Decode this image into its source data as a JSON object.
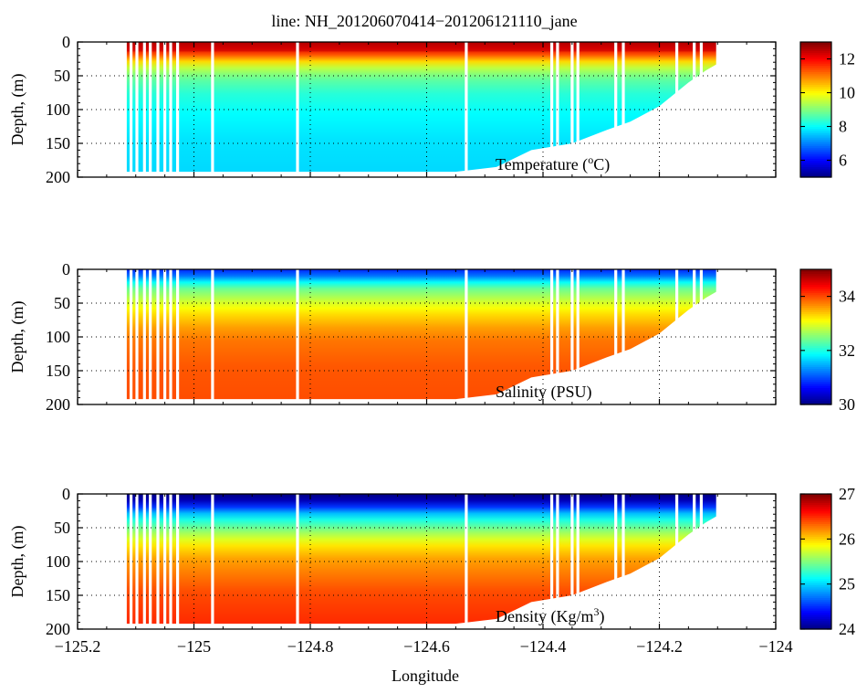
{
  "chart_data": {
    "type": "heatmap",
    "title": "line: NH_201206070414−201206121110_jane",
    "xlabel": "Longitude",
    "xlim": [
      -125.2,
      -124.0
    ],
    "xticks": [
      -125.2,
      -125.0,
      -124.8,
      -124.6,
      -124.4,
      -124.2,
      -124.0
    ],
    "xtick_labels": [
      "−125.2",
      "−125",
      "−124.8",
      "−124.6",
      "−124.4",
      "−124.2",
      "−124"
    ],
    "grid": true,
    "panels": [
      {
        "id": "temperature",
        "label_prefix": "Temperature (",
        "label_super": "o",
        "label_suffix": "C)",
        "ylabel": "Depth, (m)",
        "ylim": [
          0,
          200
        ],
        "yticks": [
          0,
          50,
          100,
          150,
          200
        ],
        "ytick_labels": [
          "0",
          "50",
          "100",
          "150",
          "200"
        ],
        "colorbar": {
          "range": [
            5,
            13
          ],
          "ticks": [
            6,
            8,
            10,
            12
          ],
          "tick_labels": [
            "6",
            "8",
            "10",
            "12"
          ]
        },
        "profile": [
          [
            0,
            12.8
          ],
          [
            10,
            12.2
          ],
          [
            18,
            11.5
          ],
          [
            25,
            10.8
          ],
          [
            35,
            9.8
          ],
          [
            45,
            9.2
          ],
          [
            60,
            8.7
          ],
          [
            80,
            8.3
          ],
          [
            110,
            8.0
          ],
          [
            150,
            7.8
          ],
          [
            200,
            7.7
          ]
        ]
      },
      {
        "id": "salinity",
        "label_prefix": "Salinity (PSU)",
        "label_super": "",
        "label_suffix": "",
        "ylabel": "Depth, (m)",
        "ylim": [
          0,
          200
        ],
        "yticks": [
          0,
          50,
          100,
          150,
          200
        ],
        "ytick_labels": [
          "0",
          "50",
          "100",
          "150",
          "200"
        ],
        "colorbar": {
          "range": [
            30,
            35
          ],
          "ticks": [
            30,
            32,
            34
          ],
          "tick_labels": [
            "30",
            "32",
            "34"
          ]
        },
        "profile": [
          [
            0,
            30.8
          ],
          [
            10,
            31.2
          ],
          [
            20,
            31.9
          ],
          [
            30,
            32.4
          ],
          [
            50,
            32.9
          ],
          [
            70,
            33.3
          ],
          [
            90,
            33.6
          ],
          [
            110,
            33.8
          ],
          [
            150,
            33.95
          ],
          [
            200,
            34.0
          ]
        ]
      },
      {
        "id": "density",
        "label_prefix": "Density (Kg/m",
        "label_super": "3",
        "label_suffix": ")",
        "ylabel": "Depth, (m)",
        "ylim": [
          0,
          200
        ],
        "yticks": [
          0,
          50,
          100,
          150,
          200
        ],
        "ytick_labels": [
          "0",
          "50",
          "100",
          "150",
          "200"
        ],
        "colorbar": {
          "range": [
            24,
            27
          ],
          "ticks": [
            24,
            25,
            26,
            27
          ],
          "tick_labels": [
            "24",
            "25",
            "26",
            "27"
          ]
        },
        "profile": [
          [
            0,
            24.0
          ],
          [
            15,
            24.25
          ],
          [
            25,
            24.8
          ],
          [
            40,
            25.2
          ],
          [
            60,
            25.6
          ],
          [
            80,
            25.95
          ],
          [
            100,
            26.15
          ],
          [
            150,
            26.4
          ],
          [
            200,
            26.5
          ]
        ]
      }
    ],
    "bottom_depth_by_longitude": [
      [
        -125.12,
        192
      ],
      [
        -124.55,
        192
      ],
      [
        -124.48,
        185
      ],
      [
        -124.42,
        160
      ],
      [
        -124.35,
        150
      ],
      [
        -124.29,
        130
      ],
      [
        -124.25,
        118
      ],
      [
        -124.2,
        95
      ],
      [
        -124.15,
        60
      ],
      [
        -124.12,
        42
      ],
      [
        -124.1,
        32
      ]
    ],
    "cast_longitudes": [
      -125.118,
      -125.108,
      -125.098,
      -125.085,
      -125.075,
      -125.062,
      -125.05,
      -125.04,
      -125.028,
      -124.968,
      -124.822,
      -124.532,
      -124.385,
      -124.375,
      -124.35,
      -124.34,
      -124.275,
      -124.262,
      -124.17,
      -124.14,
      -124.128,
      -124.1
    ]
  }
}
